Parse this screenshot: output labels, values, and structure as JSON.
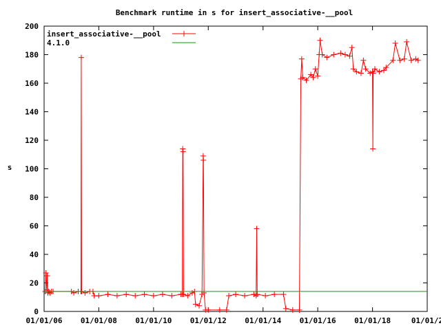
{
  "chart_data": {
    "type": "line",
    "title": "Benchmark runtime in s for insert_associative-__pool",
    "xlabel": "",
    "ylabel": "s",
    "x_domain": [
      "2006-01-01",
      "2020-01-01"
    ],
    "ylim": [
      0,
      200
    ],
    "y_ticks": [
      0,
      20,
      40,
      60,
      80,
      100,
      120,
      140,
      160,
      180,
      200
    ],
    "y_tick_labels": [
      "0",
      "20",
      "40",
      "60",
      "80",
      "100",
      "120",
      "140",
      "160",
      "180",
      "200"
    ],
    "x_ticks": [
      "2006-01-01",
      "2008-01-01",
      "2010-01-01",
      "2012-01-01",
      "2014-01-01",
      "2016-01-01",
      "2018-01-01",
      "2020-01-01"
    ],
    "x_tick_labels": [
      "01/01/06",
      "01/01/08",
      "01/01/10",
      "01/01/12",
      "01/01/14",
      "01/01/16",
      "01/01/18",
      "01/01/2"
    ],
    "grid": false,
    "legend_position": "top-left",
    "series": [
      {
        "name": "insert_associative-__pool",
        "color": "#ff0000",
        "marker": "plus",
        "points": [
          [
            "2006-01-15",
            14
          ],
          [
            "2006-01-25",
            27
          ],
          [
            "2006-02-05",
            15
          ],
          [
            "2006-02-12",
            25
          ],
          [
            "2006-02-20",
            13
          ],
          [
            "2006-03-05",
            14
          ],
          [
            "2006-03-20",
            13
          ],
          [
            "2006-04-10",
            14
          ],
          [
            "2006-05-01",
            14
          ],
          [
            "2007-01-01",
            14
          ],
          [
            "2007-02-01",
            13
          ],
          [
            "2007-04-01",
            14
          ],
          [
            "2007-05-08",
            14
          ],
          [
            "2007-05-12",
            178
          ],
          [
            "2007-05-16",
            14
          ],
          [
            "2007-07-01",
            13
          ],
          [
            "2007-09-01",
            14
          ],
          [
            "2007-10-15",
            14
          ],
          [
            "2007-11-01",
            11
          ],
          [
            "2008-01-01",
            11
          ],
          [
            "2008-05-01",
            12
          ],
          [
            "2008-09-01",
            11
          ],
          [
            "2009-01-01",
            12
          ],
          [
            "2009-05-01",
            11
          ],
          [
            "2009-09-01",
            12
          ],
          [
            "2010-01-01",
            11
          ],
          [
            "2010-05-01",
            12
          ],
          [
            "2010-09-01",
            11
          ],
          [
            "2011-01-01",
            12
          ],
          [
            "2011-01-20",
            12
          ],
          [
            "2011-01-25",
            114
          ],
          [
            "2011-01-30",
            112
          ],
          [
            "2011-02-05",
            12
          ],
          [
            "2011-04-01",
            11
          ],
          [
            "2011-06-01",
            13
          ],
          [
            "2011-07-01",
            14
          ],
          [
            "2011-07-15",
            5
          ],
          [
            "2011-09-01",
            4
          ],
          [
            "2011-10-10",
            12
          ],
          [
            "2011-10-25",
            109
          ],
          [
            "2011-10-28",
            106
          ],
          [
            "2011-11-05",
            13
          ],
          [
            "2011-11-25",
            1
          ],
          [
            "2012-01-01",
            1
          ],
          [
            "2012-06-01",
            1
          ],
          [
            "2012-09-01",
            1
          ],
          [
            "2012-10-01",
            11
          ],
          [
            "2013-01-01",
            12
          ],
          [
            "2013-05-01",
            11
          ],
          [
            "2013-09-01",
            12
          ],
          [
            "2013-10-01",
            11
          ],
          [
            "2013-10-08",
            58
          ],
          [
            "2013-10-15",
            12
          ],
          [
            "2014-02-01",
            11
          ],
          [
            "2014-06-01",
            12
          ],
          [
            "2014-10-01",
            12
          ],
          [
            "2014-11-01",
            2
          ],
          [
            "2015-02-01",
            1
          ],
          [
            "2015-05-01",
            1
          ],
          [
            "2015-05-20",
            163
          ],
          [
            "2015-06-01",
            177
          ],
          [
            "2015-06-15",
            164
          ],
          [
            "2015-08-01",
            162
          ],
          [
            "2015-10-01",
            166
          ],
          [
            "2015-11-01",
            164
          ],
          [
            "2015-12-01",
            170
          ],
          [
            "2016-01-01",
            165
          ],
          [
            "2016-01-20",
            180
          ],
          [
            "2016-02-01",
            190
          ],
          [
            "2016-03-01",
            180
          ],
          [
            "2016-05-01",
            178
          ],
          [
            "2016-08-01",
            180
          ],
          [
            "2016-11-01",
            181
          ],
          [
            "2017-01-01",
            180
          ],
          [
            "2017-03-01",
            179
          ],
          [
            "2017-04-01",
            185
          ],
          [
            "2017-04-20",
            170
          ],
          [
            "2017-06-01",
            168
          ],
          [
            "2017-08-01",
            167
          ],
          [
            "2017-09-01",
            176
          ],
          [
            "2017-10-01",
            170
          ],
          [
            "2017-12-01",
            167
          ],
          [
            "2018-01-01",
            168
          ],
          [
            "2018-01-05",
            114
          ],
          [
            "2018-01-10",
            167
          ],
          [
            "2018-02-01",
            170
          ],
          [
            "2018-04-01",
            168
          ],
          [
            "2018-06-01",
            169
          ],
          [
            "2018-07-01",
            171
          ],
          [
            "2018-10-01",
            176
          ],
          [
            "2018-11-01",
            188
          ],
          [
            "2019-01-01",
            176
          ],
          [
            "2019-03-01",
            177
          ],
          [
            "2019-04-01",
            189
          ],
          [
            "2019-06-01",
            176
          ],
          [
            "2019-08-01",
            177
          ],
          [
            "2019-09-01",
            176
          ]
        ]
      },
      {
        "name": "4.1.0",
        "color": "#00a000",
        "marker": "none",
        "points": [
          [
            "2006-01-01",
            14
          ],
          [
            "2020-01-01",
            14
          ]
        ]
      }
    ]
  }
}
